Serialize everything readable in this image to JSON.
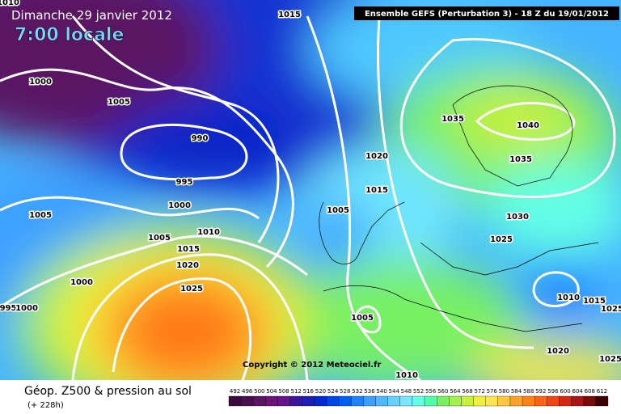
{
  "header": {
    "date": "Dimanche 29 janvier 2012",
    "time": "7:00 locale",
    "model": "Ensemble GEFS (Perturbation 3)  -  18 Z du 19/01/2012"
  },
  "copyright": "Copyright © 2012 Meteociel.fr",
  "footer": {
    "title": "Géop. Z500 & pression au sol",
    "lead": "(+ 228h)"
  },
  "isobar_labels": [
    "1010",
    "1015",
    "1000",
    "1005",
    "990",
    "1035",
    "1040",
    "1020",
    "1035",
    "995",
    "1015",
    "1005",
    "1000",
    "1005",
    "1030",
    "1010",
    "1005",
    "1025",
    "1015",
    "1020",
    "1000",
    "1025",
    "1010",
    "1015",
    "995",
    "1000",
    "1025",
    "1005",
    "1020",
    "1025",
    "1010"
  ],
  "legend": {
    "labels": [
      "492",
      "496",
      "500",
      "504",
      "508",
      "512",
      "516",
      "520",
      "524",
      "528",
      "532",
      "536",
      "540",
      "544",
      "548",
      "552",
      "556",
      "560",
      "564",
      "568",
      "572",
      "576",
      "580",
      "584",
      "588",
      "592",
      "596",
      "600",
      "604",
      "608",
      "612"
    ],
    "colors": [
      "#3c0a3c",
      "#4b0f50",
      "#5a1464",
      "#6e1478",
      "#64148c",
      "#3c14a0",
      "#1e1eb4",
      "#0028d2",
      "#0046e6",
      "#005ff5",
      "#1e82ff",
      "#3ca0ff",
      "#50b9ff",
      "#64d2ff",
      "#78e6ff",
      "#64ffe6",
      "#50ffaa",
      "#78f064",
      "#a0f050",
      "#c8f03c",
      "#f0f03c",
      "#ffe650",
      "#ffc83c",
      "#ffa028",
      "#ff8214",
      "#ff6414",
      "#f04614",
      "#d22814",
      "#aa1414",
      "#780a0a",
      "#3c0000"
    ]
  }
}
